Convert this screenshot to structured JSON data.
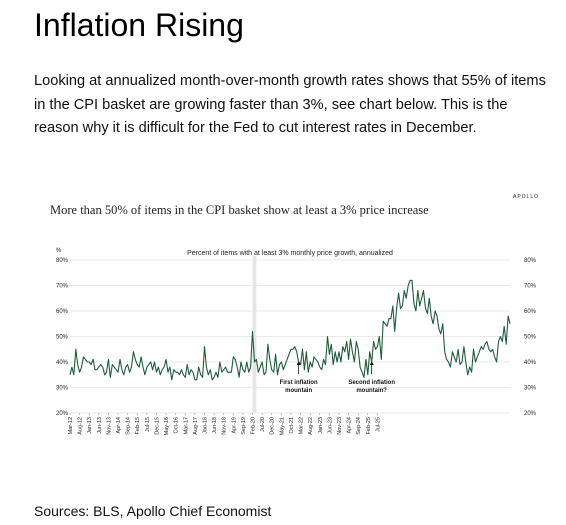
{
  "page": {
    "title": "Inflation Rising",
    "intro": "Looking at annualized month-over-month growth rates shows that 55% of items in the CPI basket are growing faster than 3%, see chart below. This is the reason why it is difficult for the Fed to cut interest rates in December.",
    "sources": "Sources: BLS, Apollo Chief Economist"
  },
  "chart_brand": "APOLLO",
  "colors": {
    "line": "#1f5c3a",
    "grid": "#d4d4d4",
    "shade": "#e6e6e6",
    "text": "#222222"
  },
  "chart_data": {
    "type": "line",
    "title": "More than 50% of items in the CPI basket show at least a 3% price increase",
    "subtitle": "Percent of items with at least 3% monthly price growth, annualized",
    "ylabel_unit": "%",
    "ylim": [
      20,
      80
    ],
    "yticks": [
      "20%",
      "30%",
      "40%",
      "50%",
      "60%",
      "70%",
      "80%"
    ],
    "ytick_values": [
      20,
      30,
      40,
      50,
      60,
      70,
      80
    ],
    "grid": true,
    "x_start": "Mar-12",
    "x_end": "Oct-25",
    "x_tick_labels": [
      "Mar-12",
      "Aug-12",
      "Jan-13",
      "Jun-13",
      "Nov-13",
      "Apr-14",
      "Sep-14",
      "Feb-15",
      "Jul-15",
      "Dec-15",
      "May-16",
      "Oct-16",
      "Mar-17",
      "Aug-17",
      "Jan-18",
      "Jun-18",
      "Nov-18",
      "Apr-19",
      "Sep-19",
      "Feb-20",
      "Jul-20",
      "Dec-20",
      "May-21",
      "Oct-21",
      "Mar-22",
      "Aug-22",
      "Jan-23",
      "Jun-23",
      "Nov-23",
      "Apr-24",
      "Sep-24",
      "Feb-25",
      "Jul-25"
    ],
    "shaded_period": [
      "Feb-20",
      "Apr-20"
    ],
    "annotations": [
      {
        "text_lines": [
          "First inflation",
          "mountain"
        ],
        "x": "Feb-22",
        "y": 40
      },
      {
        "text_lines": [
          "Second inflation",
          "mountain?"
        ],
        "x": "Apr-25",
        "y": 40
      }
    ],
    "series": [
      {
        "values": [
          35,
          38,
          35,
          45,
          39,
          36,
          38,
          42,
          41,
          40,
          40,
          39,
          41,
          37,
          37,
          38,
          39,
          38,
          35,
          36,
          41,
          34,
          39,
          38,
          37,
          36,
          41,
          37,
          35,
          38,
          39,
          36,
          38,
          44,
          41,
          39,
          38,
          42,
          38,
          35,
          38,
          39,
          40,
          37,
          40,
          36,
          38,
          35,
          37,
          38,
          41,
          36,
          38,
          33,
          37,
          36,
          36,
          35,
          37,
          35,
          34,
          39,
          35,
          37,
          36,
          33,
          33,
          38,
          35,
          34,
          46,
          38,
          35,
          37,
          33,
          34,
          36,
          34,
          40,
          36,
          37,
          38,
          36,
          36,
          36,
          42,
          41,
          38,
          34,
          40,
          37,
          36,
          40,
          36,
          38,
          52,
          40,
          41,
          36,
          38,
          40,
          35,
          36,
          47,
          41,
          37,
          36,
          43,
          35,
          39,
          40,
          37,
          39,
          41,
          43,
          45,
          45,
          46,
          44,
          40,
          39,
          45,
          37,
          44,
          36,
          40,
          38,
          42,
          41,
          40,
          38,
          37,
          41,
          39,
          50,
          43,
          47,
          39,
          44,
          40,
          44,
          40,
          46,
          44,
          48,
          41,
          49,
          44,
          40,
          48,
          45,
          38,
          36,
          34,
          41,
          35,
          44,
          40,
          48,
          45,
          46,
          50,
          41,
          56,
          55,
          54,
          57,
          57,
          62,
          52,
          61,
          67,
          61,
          62,
          68,
          65,
          70,
          72,
          72,
          63,
          60,
          68,
          62,
          65,
          68,
          61,
          59,
          65,
          58,
          55,
          60,
          58,
          53,
          51,
          55,
          44,
          41,
          40,
          38,
          44,
          42,
          40,
          45,
          39,
          40,
          46,
          40,
          35,
          38,
          36,
          45,
          40,
          42,
          44,
          46,
          45,
          47,
          48,
          45,
          44,
          45,
          42,
          40,
          48,
          50,
          48,
          54,
          47,
          58,
          55
        ]
      }
    ]
  }
}
